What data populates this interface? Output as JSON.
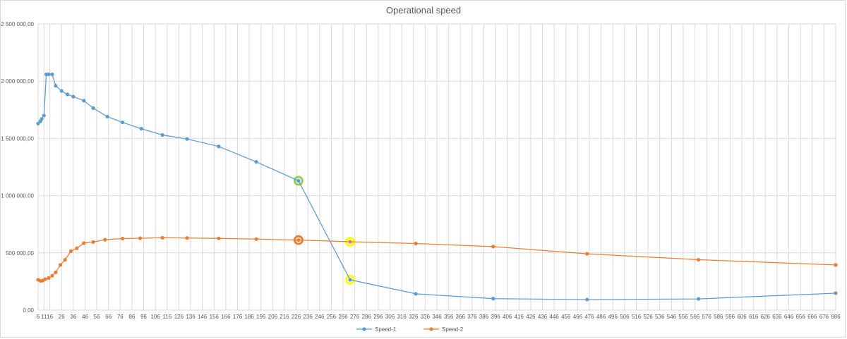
{
  "chart_data": {
    "type": "line",
    "title": "Operational speed",
    "xlabel": "",
    "ylabel": "",
    "xlim": [
      6,
      686
    ],
    "ylim": [
      0,
      2500000
    ],
    "x_ticks": [
      6,
      11,
      16,
      26,
      36,
      46,
      56,
      66,
      76,
      86,
      96,
      106,
      116,
      126,
      136,
      146,
      156,
      166,
      176,
      186,
      196,
      206,
      216,
      226,
      236,
      246,
      256,
      266,
      276,
      286,
      296,
      306,
      316,
      326,
      336,
      346,
      356,
      366,
      376,
      386,
      396,
      406,
      416,
      426,
      436,
      446,
      456,
      466,
      476,
      486,
      496,
      506,
      516,
      526,
      536,
      546,
      556,
      566,
      576,
      586,
      596,
      606,
      616,
      626,
      636,
      646,
      656,
      666,
      676,
      686
    ],
    "y_ticks": [
      "0,00",
      "500 000,00",
      "1 000 000,00",
      "1 500 000,00",
      "2 000 000,00",
      "2 500 000,00"
    ],
    "grid": true,
    "legend": "bottom",
    "series": [
      {
        "name": "Speed-1",
        "color": "#5b9bd5",
        "points": [
          [
            6,
            1630000
          ],
          [
            8,
            1650000
          ],
          [
            9,
            1670000
          ],
          [
            11,
            1700000
          ],
          [
            13,
            2060000
          ],
          [
            15,
            2060000
          ],
          [
            18,
            2060000
          ],
          [
            21,
            1960000
          ],
          [
            26,
            1915000
          ],
          [
            31,
            1885000
          ],
          [
            36,
            1865000
          ],
          [
            45,
            1830000
          ],
          [
            53,
            1765000
          ],
          [
            65,
            1690000
          ],
          [
            78,
            1640000
          ],
          [
            94,
            1585000
          ],
          [
            112,
            1530000
          ],
          [
            133,
            1495000
          ],
          [
            160,
            1430000
          ],
          [
            192,
            1295000
          ],
          [
            228,
            1130000
          ],
          [
            272,
            265000
          ],
          [
            328,
            142000
          ],
          [
            394,
            100000
          ],
          [
            474,
            92000
          ],
          [
            569,
            98000
          ],
          [
            686,
            148000
          ]
        ]
      },
      {
        "name": "Speed-2",
        "color": "#ed7d31",
        "points": [
          [
            6,
            265000
          ],
          [
            8,
            255000
          ],
          [
            10,
            258000
          ],
          [
            12,
            270000
          ],
          [
            15,
            280000
          ],
          [
            18,
            300000
          ],
          [
            21,
            330000
          ],
          [
            25,
            395000
          ],
          [
            29,
            440000
          ],
          [
            34,
            515000
          ],
          [
            39,
            540000
          ],
          [
            45,
            585000
          ],
          [
            53,
            595000
          ],
          [
            63,
            615000
          ],
          [
            78,
            625000
          ],
          [
            93,
            628000
          ],
          [
            112,
            632000
          ],
          [
            133,
            630000
          ],
          [
            160,
            627000
          ],
          [
            192,
            620000
          ],
          [
            228,
            612000
          ],
          [
            272,
            597000
          ],
          [
            328,
            582000
          ],
          [
            394,
            555000
          ],
          [
            474,
            492000
          ],
          [
            569,
            440000
          ],
          [
            686,
            395000
          ]
        ]
      }
    ],
    "highlights": [
      {
        "series": "Speed-1",
        "x": 228,
        "y": 1130000,
        "ring_color": "#92d050"
      },
      {
        "series": "Speed-2",
        "x": 228,
        "y": 612000,
        "ring_color": "#ed7d31"
      },
      {
        "series": "Speed-2",
        "x": 272,
        "y": 597000,
        "ring_color": "#ffff00"
      },
      {
        "series": "Speed-1",
        "x": 272,
        "y": 265000,
        "ring_color": "#ffff00"
      }
    ]
  }
}
